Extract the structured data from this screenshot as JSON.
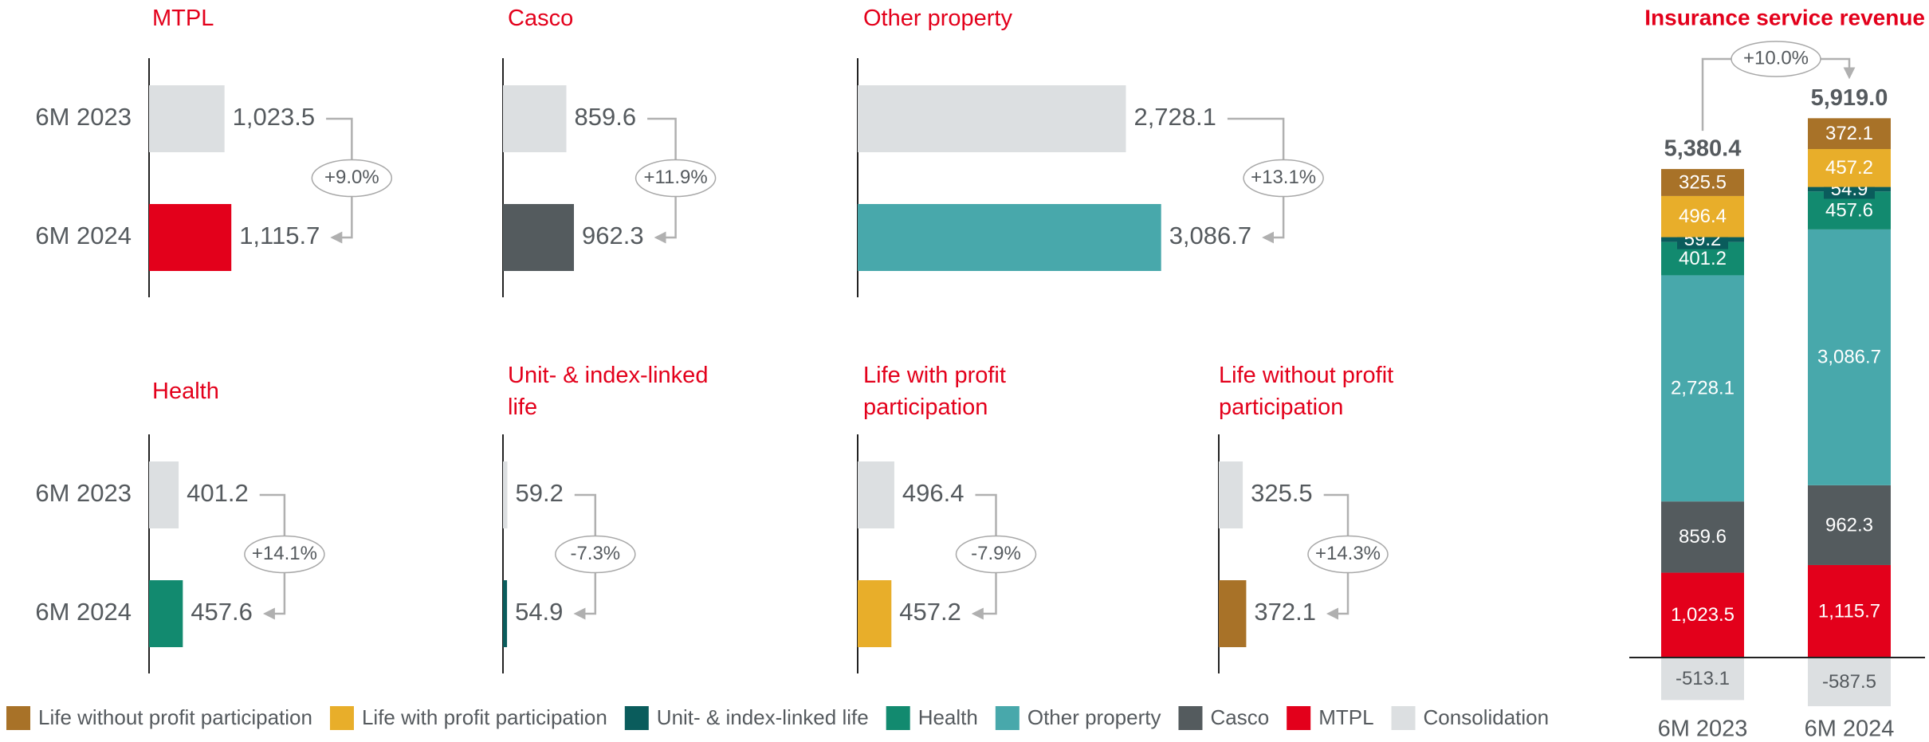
{
  "chart_data": [
    {
      "type": "hbar",
      "title": "MTPL",
      "categories": [
        "6M 2023",
        "6M 2024"
      ],
      "values": [
        1023.5,
        1115.7
      ],
      "value_labels": [
        "1,023.5",
        "1,115.7"
      ],
      "colors": [
        "#dcdfe1",
        "#e3001b"
      ],
      "xlim": [
        0,
        4000
      ],
      "annotation": "+9.0%"
    },
    {
      "type": "hbar",
      "title": "Casco",
      "categories": [
        null,
        null
      ],
      "values": [
        859.6,
        962.3
      ],
      "value_labels": [
        "859.6",
        "962.3"
      ],
      "colors": [
        "#dcdfe1",
        "#545b5e"
      ],
      "xlim": [
        0,
        4000
      ],
      "annotation": "+11.9%"
    },
    {
      "type": "hbar",
      "title": "Other property",
      "categories": [
        null,
        null
      ],
      "values": [
        2728.1,
        3086.7
      ],
      "value_labels": [
        "2,728.1",
        "3,086.7"
      ],
      "colors": [
        "#dcdfe1",
        "#48a8ab"
      ],
      "xlim": [
        0,
        3000
      ],
      "annotation": "+13.1%"
    },
    {
      "type": "hbar",
      "title": "Health",
      "categories": [
        "6M 2023",
        "6M 2024"
      ],
      "values": [
        401.2,
        457.6
      ],
      "colors": [
        "#dcdfe1",
        "#128a6f"
      ],
      "xlim": [
        0,
        4000
      ],
      "annotation": "+14.1%"
    },
    {
      "type": "hbar",
      "title": "Unit- & index-linked life",
      "categories": [
        null,
        null
      ],
      "values": [
        59.2,
        54.9
      ],
      "colors": [
        "#dcdfe1",
        "#0a5c5c"
      ],
      "xlim": [
        0,
        4000
      ],
      "annotation": "-7.3%"
    },
    {
      "type": "hbar",
      "title": "Life with profit participation",
      "categories": [
        null,
        null
      ],
      "values": [
        496.4,
        457.2
      ],
      "colors": [
        "#dcdfe1",
        "#e8ae2a"
      ],
      "xlim": [
        0,
        4000
      ],
      "annotation": "-7.9%"
    },
    {
      "type": "hbar",
      "title": "Life without profit participation",
      "categories": [
        null,
        null
      ],
      "values": [
        325.5,
        372.1
      ],
      "colors": [
        "#dcdfe1",
        "#a87228"
      ],
      "xlim": [
        0,
        4000
      ],
      "annotation": "+14.3%"
    },
    {
      "type": "stacked_bar",
      "title": "Insurance service revenue",
      "categories": [
        "6M 2023",
        "6M 2024"
      ],
      "ylim": [
        -1000,
        7000
      ],
      "series": [
        {
          "name": "Life without profit participation",
          "color": "#a87228",
          "values": [
            325.5,
            372.1
          ]
        },
        {
          "name": "Life with profit participation",
          "color": "#e8ae2a",
          "values": [
            496.4,
            457.2
          ]
        },
        {
          "name": "Unit- & index-linked life",
          "color": "#0a5c5c",
          "values": [
            59.2,
            54.9
          ]
        },
        {
          "name": "Health",
          "color": "#128a6f",
          "values": [
            401.2,
            457.6
          ]
        },
        {
          "name": "Other property",
          "color": "#48a8ab",
          "values": [
            2728.1,
            3086.7
          ],
          "value_labels": [
            "2,728.1",
            "3,086.7"
          ]
        },
        {
          "name": "Casco",
          "color": "#545b5e",
          "values": [
            859.6,
            962.3
          ]
        },
        {
          "name": "MTPL",
          "color": "#e3001b",
          "values": [
            1023.5,
            1115.7
          ],
          "value_labels": [
            "1,023.5",
            "1,115.7"
          ]
        },
        {
          "name": "Consolidation",
          "color": "#dcdfe1",
          "values": [
            -513.1,
            -587.5
          ]
        }
      ],
      "totals": [
        5380.4,
        5919.0
      ],
      "total_labels": [
        "5,380.4",
        "5,919.0"
      ],
      "annotation": "+10.0%"
    }
  ]
}
